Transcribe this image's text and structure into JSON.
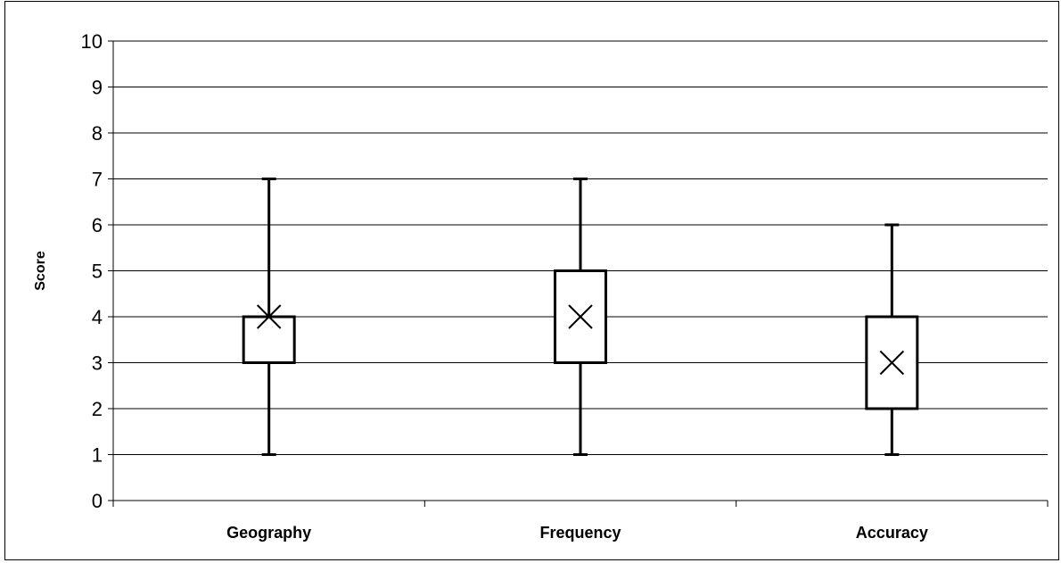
{
  "chart_data": {
    "type": "box",
    "title": "",
    "xlabel": "",
    "ylabel": "Score",
    "ylim": [
      0,
      10
    ],
    "yticks": [
      0,
      1,
      2,
      3,
      4,
      5,
      6,
      7,
      8,
      9,
      10
    ],
    "grid": true,
    "categories": [
      "Geography",
      "Frequency",
      "Accuracy"
    ],
    "boxes": [
      {
        "category": "Geography",
        "min": 1,
        "q1": 3,
        "q3": 4,
        "max": 7,
        "mean": 4
      },
      {
        "category": "Frequency",
        "min": 1,
        "q1": 3,
        "q3": 5,
        "max": 7,
        "mean": 4
      },
      {
        "category": "Accuracy",
        "min": 1,
        "q1": 2,
        "q3": 4,
        "max": 6,
        "mean": 3
      }
    ],
    "colors": {
      "line": "#000000",
      "grid": "#000000",
      "background": "#ffffff"
    }
  }
}
